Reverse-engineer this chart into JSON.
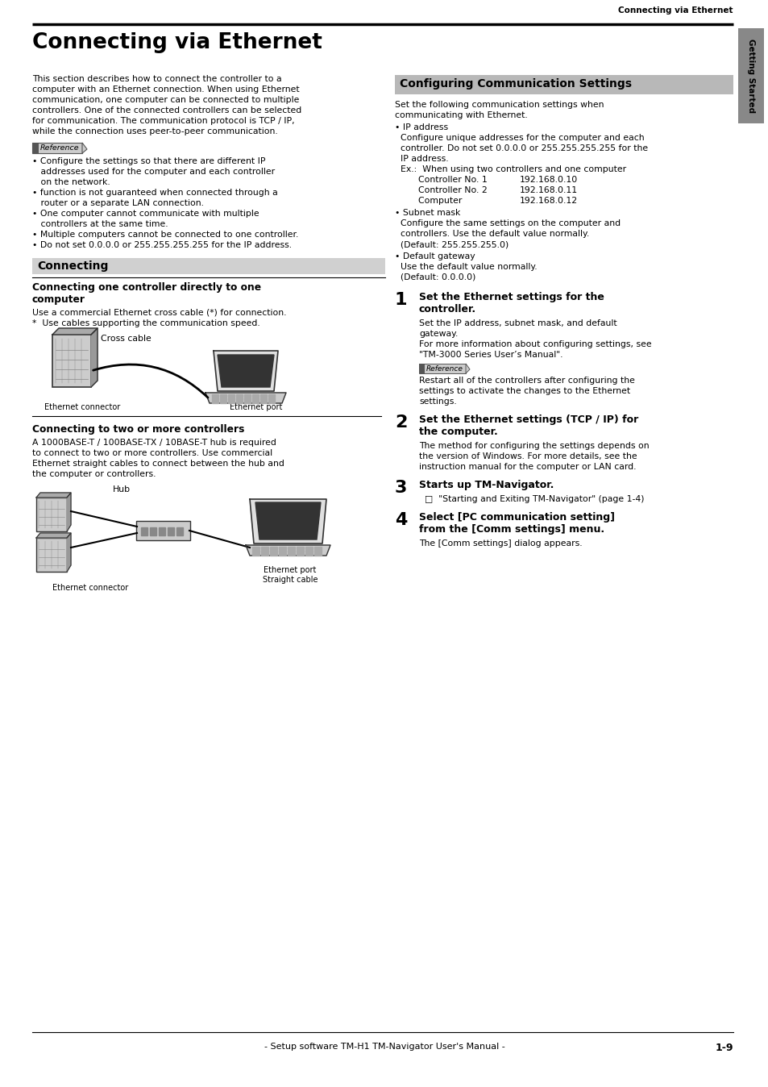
{
  "page_header": "Connecting via Ethernet",
  "main_title": "Connecting via Ethernet",
  "bg_color": "#ffffff",
  "sidebar_color": "#888888",
  "left_intro_lines": [
    "This section describes how to connect the controller to a",
    "computer with an Ethernet connection. When using Ethernet",
    "communication, one computer can be connected to multiple",
    "controllers. One of the connected controllers can be selected",
    "for communication. The communication protocol is TCP / IP,",
    "while the connection uses peer-to-peer communication."
  ],
  "reference_bullets": [
    "• Configure the settings so that there are different IP",
    "   addresses used for the computer and each controller",
    "   on the network.",
    "• function is not guaranteed when connected through a",
    "   router or a separate LAN connection.",
    "• One computer cannot communicate with multiple",
    "   controllers at the same time.",
    "• Multiple computers cannot be connected to one controller.",
    "• Do not set 0.0.0.0 or 255.255.255.255 for the IP address."
  ],
  "connecting_header": "Connecting",
  "connecting_sub1_line1": "Connecting one controller directly to one",
  "connecting_sub1_line2": "computer",
  "sub1_body": [
    "Use a commercial Ethernet cross cable (*) for connection.",
    "*  Use cables supporting the communication speed."
  ],
  "cross_cable_label": "Cross cable",
  "eth_connector_label": "Ethernet connector",
  "eth_port_label": "Ethernet port",
  "connecting_sub2": "Connecting to two or more controllers",
  "sub2_body": [
    "A 1000BASE-T / 100BASE-TX / 10BASE-T hub is required",
    "to connect to two or more controllers. Use commercial",
    "Ethernet straight cables to connect between the hub and",
    "the computer or controllers."
  ],
  "hub_label": "Hub",
  "eth_port_label2": "Ethernet port",
  "straight_cable_label": "Straight cable",
  "eth_connector_label2": "Ethernet connector",
  "right_header": "Configuring Communication Settings",
  "right_intro": [
    "Set the following communication settings when",
    "communicating with Ethernet."
  ],
  "ip_address_title": "IP address",
  "ip_address_body": [
    "  Configure unique addresses for the computer and each",
    "  controller. Do not set 0.0.0.0 or 255.255.255.255 for the",
    "  IP address."
  ],
  "ip_example": "  Ex.:  When using two controllers and one computer",
  "ip_table": [
    [
      "      Controller No. 1",
      "192.168.0.10"
    ],
    [
      "      Controller No. 2",
      "192.168.0.11"
    ],
    [
      "      Computer",
      "192.168.0.12"
    ]
  ],
  "subnet_title": "Subnet mask",
  "subnet_body": [
    "  Configure the same settings on the computer and",
    "  controllers. Use the default value normally.",
    "  (Default: 255.255.255.0)"
  ],
  "gateway_title": "Default gateway",
  "gateway_body": [
    "  Use the default value normally.",
    "  (Default: 0.0.0.0)"
  ],
  "step1_num": "1",
  "step1_title_line1": "Set the Ethernet settings for the",
  "step1_title_line2": "controller.",
  "step1_body": [
    "Set the IP address, subnet mask, and default",
    "gateway.",
    "For more information about configuring settings, see",
    "\"TM-3000 Series User’s Manual\"."
  ],
  "step1_ref_body": [
    "Restart all of the controllers after configuring the",
    "settings to activate the changes to the Ethernet",
    "settings."
  ],
  "step2_num": "2",
  "step2_title_line1": "Set the Ethernet settings (TCP / IP) for",
  "step2_title_line2": "the computer.",
  "step2_body": [
    "The method for configuring the settings depends on",
    "the version of Windows. For more details, see the",
    "instruction manual for the computer or LAN card."
  ],
  "step3_num": "3",
  "step3_title": "Starts up TM-Navigator.",
  "step3_body": "  □  \"Starting and Exiting TM-Navigator\" (page 1-4)",
  "step4_num": "4",
  "step4_title_line1": "Select [PC communication setting]",
  "step4_title_line2": "from the [Comm settings] menu.",
  "step4_body": "The [Comm settings] dialog appears.",
  "footer_text": "- Setup software TM-H1 TM-Navigator User's Manual -",
  "page_number": "1-9",
  "sidebar_text": "Getting Started"
}
